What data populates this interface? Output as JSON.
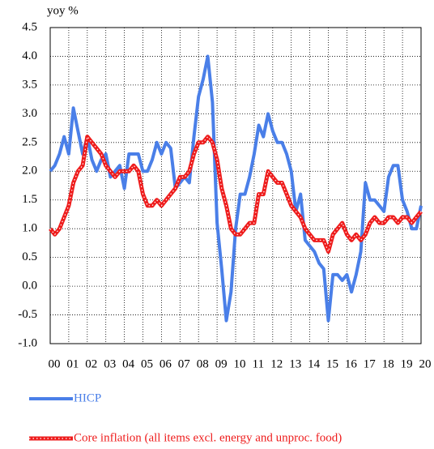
{
  "chart_data": {
    "type": "line",
    "y_label": "yoy %",
    "x": [
      2000,
      2000.25,
      2000.5,
      2000.75,
      2001,
      2001.25,
      2001.5,
      2001.75,
      2002,
      2002.25,
      2002.5,
      2002.75,
      2003,
      2003.25,
      2003.5,
      2003.75,
      2004,
      2004.25,
      2004.5,
      2004.75,
      2005,
      2005.25,
      2005.5,
      2005.75,
      2006,
      2006.25,
      2006.5,
      2006.75,
      2007,
      2007.25,
      2007.5,
      2007.75,
      2008,
      2008.25,
      2008.5,
      2008.75,
      2009,
      2009.25,
      2009.5,
      2009.75,
      2010,
      2010.25,
      2010.5,
      2010.75,
      2011,
      2011.25,
      2011.5,
      2011.75,
      2012,
      2012.25,
      2012.5,
      2012.75,
      2013,
      2013.25,
      2013.5,
      2013.75,
      2014,
      2014.25,
      2014.5,
      2014.75,
      2015,
      2015.25,
      2015.5,
      2015.75,
      2016,
      2016.25,
      2016.5,
      2016.75,
      2017,
      2017.25,
      2017.5,
      2017.75,
      2018,
      2018.25,
      2018.5,
      2018.75,
      2019,
      2019.25,
      2019.5,
      2019.75,
      2020
    ],
    "series": [
      {
        "name": "HICP",
        "color": "#4a7fe8",
        "values": [
          2.0,
          2.1,
          2.3,
          2.6,
          2.3,
          3.1,
          2.7,
          2.3,
          2.6,
          2.2,
          2.0,
          2.2,
          2.3,
          1.9,
          2.0,
          2.1,
          1.7,
          2.3,
          2.3,
          2.3,
          2.0,
          2.0,
          2.2,
          2.5,
          2.3,
          2.5,
          2.4,
          1.7,
          1.8,
          1.9,
          1.8,
          2.6,
          3.3,
          3.6,
          4.0,
          3.2,
          1.1,
          0.3,
          -0.6,
          -0.1,
          1.0,
          1.6,
          1.6,
          1.9,
          2.3,
          2.8,
          2.6,
          3.0,
          2.7,
          2.5,
          2.5,
          2.3,
          2.0,
          1.3,
          1.6,
          0.8,
          0.7,
          0.6,
          0.4,
          0.3,
          -0.6,
          0.2,
          0.2,
          0.1,
          0.2,
          -0.1,
          0.2,
          0.6,
          1.8,
          1.5,
          1.5,
          1.4,
          1.3,
          1.9,
          2.1,
          2.1,
          1.5,
          1.3,
          1.0,
          1.0,
          1.4
        ]
      },
      {
        "name": "Core inflation (all items excl. energy and unproc. food)",
        "color": "#ee1c1c",
        "values": [
          1.0,
          0.9,
          1.0,
          1.2,
          1.4,
          1.8,
          2.0,
          2.1,
          2.6,
          2.5,
          2.4,
          2.3,
          2.1,
          2.0,
          1.9,
          2.0,
          2.0,
          2.0,
          2.1,
          2.0,
          1.6,
          1.4,
          1.4,
          1.5,
          1.4,
          1.5,
          1.6,
          1.7,
          1.9,
          1.9,
          2.0,
          2.3,
          2.5,
          2.5,
          2.6,
          2.5,
          2.2,
          1.7,
          1.4,
          1.0,
          0.9,
          0.9,
          1.0,
          1.1,
          1.1,
          1.6,
          1.6,
          2.0,
          1.9,
          1.8,
          1.8,
          1.6,
          1.4,
          1.3,
          1.2,
          1.0,
          0.9,
          0.8,
          0.8,
          0.8,
          0.6,
          0.9,
          1.0,
          1.1,
          0.9,
          0.8,
          0.9,
          0.8,
          0.9,
          1.1,
          1.2,
          1.1,
          1.1,
          1.2,
          1.2,
          1.1,
          1.2,
          1.2,
          1.1,
          1.2,
          1.3
        ]
      }
    ],
    "xlim": [
      2000,
      2020
    ],
    "xticks": [
      {
        "value": 2000,
        "label": "00"
      },
      {
        "value": 2001,
        "label": "01"
      },
      {
        "value": 2002,
        "label": "02"
      },
      {
        "value": 2003,
        "label": "03"
      },
      {
        "value": 2004,
        "label": "04"
      },
      {
        "value": 2005,
        "label": "05"
      },
      {
        "value": 2006,
        "label": "06"
      },
      {
        "value": 2007,
        "label": "07"
      },
      {
        "value": 2008,
        "label": "08"
      },
      {
        "value": 2009,
        "label": "09"
      },
      {
        "value": 2010,
        "label": "10"
      },
      {
        "value": 2011,
        "label": "11"
      },
      {
        "value": 2012,
        "label": "12"
      },
      {
        "value": 2013,
        "label": "13"
      },
      {
        "value": 2014,
        "label": "14"
      },
      {
        "value": 2015,
        "label": "15"
      },
      {
        "value": 2016,
        "label": "16"
      },
      {
        "value": 2017,
        "label": "17"
      },
      {
        "value": 2018,
        "label": "18"
      },
      {
        "value": 2019,
        "label": "19"
      },
      {
        "value": 2020,
        "label": "20"
      }
    ],
    "ylim": [
      -1.0,
      4.5
    ],
    "yticks": [
      {
        "value": 4.5,
        "label": "4.5"
      },
      {
        "value": 4.0,
        "label": "4.0"
      },
      {
        "value": 3.5,
        "label": "3.5"
      },
      {
        "value": 3.0,
        "label": "3.0"
      },
      {
        "value": 2.5,
        "label": "2.5"
      },
      {
        "value": 2.0,
        "label": "2.0"
      },
      {
        "value": 1.5,
        "label": "1.5"
      },
      {
        "value": 1.0,
        "label": "1.0"
      },
      {
        "value": 0.5,
        "label": "0.5"
      },
      {
        "value": 0.0,
        "label": "0.0"
      },
      {
        "value": -0.5,
        "label": "-0.5"
      },
      {
        "value": -1.0,
        "label": "-1.0"
      }
    ],
    "grid": true
  }
}
